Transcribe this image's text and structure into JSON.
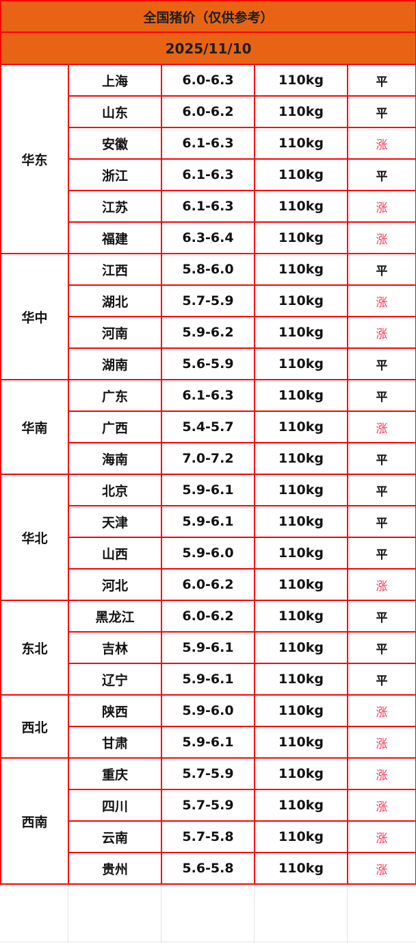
{
  "title": "全国猪价（仅供参考）",
  "date": "2025/11/10",
  "colors": {
    "header_bg": "#e86414",
    "border": "#ff0000",
    "rise": "#ff3355",
    "flat": "#111111"
  },
  "regions": [
    {
      "name": "华东",
      "rows": [
        {
          "province": "上海",
          "price": "6.0-6.3",
          "weight": "110kg",
          "trend": "平"
        },
        {
          "province": "山东",
          "price": "6.0-6.2",
          "weight": "110kg",
          "trend": "平"
        },
        {
          "province": "安徽",
          "price": "6.1-6.3",
          "weight": "110kg",
          "trend": "涨"
        },
        {
          "province": "浙江",
          "price": "6.1-6.3",
          "weight": "110kg",
          "trend": "平"
        },
        {
          "province": "江苏",
          "price": "6.1-6.3",
          "weight": "110kg",
          "trend": "涨"
        },
        {
          "province": "福建",
          "price": "6.3-6.4",
          "weight": "110kg",
          "trend": "涨"
        }
      ]
    },
    {
      "name": "华中",
      "rows": [
        {
          "province": "江西",
          "price": "5.8-6.0",
          "weight": "110kg",
          "trend": "平"
        },
        {
          "province": "湖北",
          "price": "5.7-5.9",
          "weight": "110kg",
          "trend": "涨"
        },
        {
          "province": "河南",
          "price": "5.9-6.2",
          "weight": "110kg",
          "trend": "涨"
        },
        {
          "province": "湖南",
          "price": "5.6-5.9",
          "weight": "110kg",
          "trend": "平"
        }
      ]
    },
    {
      "name": "华南",
      "rows": [
        {
          "province": "广东",
          "price": "6.1-6.3",
          "weight": "110kg",
          "trend": "平"
        },
        {
          "province": "广西",
          "price": "5.4-5.7",
          "weight": "110kg",
          "trend": "涨"
        },
        {
          "province": "海南",
          "price": "7.0-7.2",
          "weight": "110kg",
          "trend": "平"
        }
      ]
    },
    {
      "name": "华北",
      "rows": [
        {
          "province": "北京",
          "price": "5.9-6.1",
          "weight": "110kg",
          "trend": "平"
        },
        {
          "province": "天津",
          "price": "5.9-6.1",
          "weight": "110kg",
          "trend": "平"
        },
        {
          "province": "山西",
          "price": "5.9-6.0",
          "weight": "110kg",
          "trend": "平"
        },
        {
          "province": "河北",
          "price": "6.0-6.2",
          "weight": "110kg",
          "trend": "涨"
        }
      ]
    },
    {
      "name": "东北",
      "rows": [
        {
          "province": "黑龙江",
          "price": "6.0-6.2",
          "weight": "110kg",
          "trend": "平"
        },
        {
          "province": "吉林",
          "price": "5.9-6.1",
          "weight": "110kg",
          "trend": "平"
        },
        {
          "province": "辽宁",
          "price": "5.9-6.1",
          "weight": "110kg",
          "trend": "平"
        }
      ]
    },
    {
      "name": "西北",
      "rows": [
        {
          "province": "陕西",
          "price": "5.9-6.0",
          "weight": "110kg",
          "trend": "涨"
        },
        {
          "province": "甘肃",
          "price": "5.9-6.1",
          "weight": "110kg",
          "trend": "涨"
        }
      ]
    },
    {
      "name": "西南",
      "rows": [
        {
          "province": "重庆",
          "price": "5.7-5.9",
          "weight": "110kg",
          "trend": "涨"
        },
        {
          "province": "四川",
          "price": "5.7-5.9",
          "weight": "110kg",
          "trend": "涨"
        },
        {
          "province": "云南",
          "price": "5.7-5.8",
          "weight": "110kg",
          "trend": "涨"
        },
        {
          "province": "贵州",
          "price": "5.6-5.8",
          "weight": "110kg",
          "trend": "涨"
        }
      ]
    }
  ]
}
